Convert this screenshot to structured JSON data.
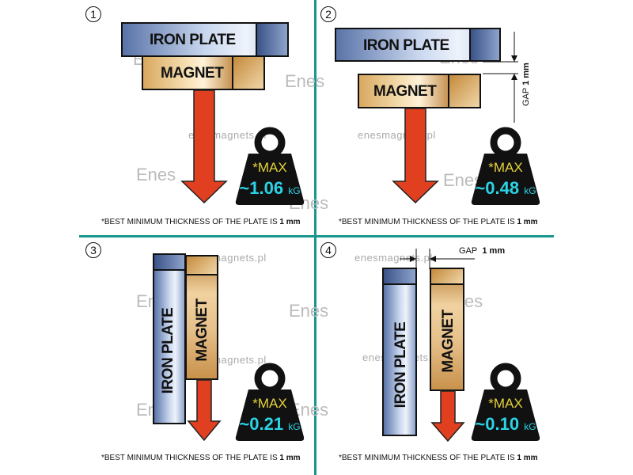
{
  "panels": [
    {
      "number": "1",
      "plate": "IRON PLATE",
      "magnet": "MAGNET",
      "max": "*MAX",
      "value": "~1.06",
      "unit": "kG",
      "note": "*BEST MINIMUM THICKNESS OF THE PLATE IS",
      "note_bold": "1 mm"
    },
    {
      "number": "2",
      "plate": "IRON PLATE",
      "magnet": "MAGNET",
      "max": "*MAX",
      "value": "~0.48",
      "unit": "kG",
      "note": "*BEST MINIMUM THICKNESS OF THE PLATE IS",
      "note_bold": "1 mm",
      "gap_label": "GAP",
      "gap_value": "1 mm"
    },
    {
      "number": "3",
      "plate": "IRON  PLATE",
      "magnet": "MAGNET",
      "max": "*MAX",
      "value": "~0.21",
      "unit": "kG",
      "note": "*BEST MINIMUM THICKNESS OF THE PLATE IS",
      "note_bold": "1 mm"
    },
    {
      "number": "4",
      "plate": "IRON PLATE",
      "magnet": "MAGNET",
      "max": "*MAX",
      "value": "~0.10",
      "unit": "kG",
      "note": "*BEST MINIMUM THICKNESS OF THE PLATE IS",
      "note_bold": "1 mm",
      "gap_label": "GAP",
      "gap_value": "1 mm"
    }
  ],
  "watermark": {
    "site": "enesmagnets.pl",
    "logo": "Enes"
  },
  "colors": {
    "divider": "#1a968f",
    "arrow": "#e04020",
    "weight": "#111111",
    "max_text": "#e6d23a",
    "value_text": "#2ad4e6"
  }
}
